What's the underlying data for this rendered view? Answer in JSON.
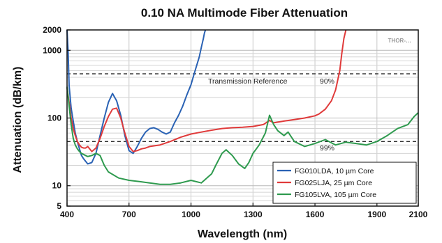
{
  "chart_data": {
    "type": "line",
    "title": "0.10 NA Multimode Fiber Attenuation",
    "xlabel": "Wavelength (nm)",
    "ylabel": "Attenuation (dB/km)",
    "xlim": [
      400,
      2100
    ],
    "ylim": [
      5,
      2000
    ],
    "yscale": "log",
    "x_ticks": [
      400,
      700,
      1000,
      1300,
      1600,
      1900,
      2100
    ],
    "y_ticks": [
      5,
      10,
      100,
      1000,
      2000
    ],
    "grid": true,
    "legend_position": "bottom-right",
    "watermark": "THOR-…",
    "reference_lines": [
      {
        "value": 450,
        "label": "Transmission Reference",
        "percent": "90%"
      },
      {
        "value": 45,
        "label": "",
        "percent": "99%"
      }
    ],
    "series": [
      {
        "name": "FG010LDA, 10 µm Core",
        "color": "#2a62b4",
        "x": [
          400,
          405,
          410,
          420,
          430,
          440,
          450,
          460,
          470,
          480,
          500,
          520,
          540,
          560,
          580,
          600,
          620,
          640,
          660,
          680,
          700,
          720,
          740,
          760,
          780,
          800,
          820,
          840,
          860,
          880,
          900,
          920,
          940,
          960,
          980,
          1000,
          1020,
          1040,
          1050,
          1060,
          1065,
          1070
        ],
        "y": [
          2000,
          1000,
          300,
          140,
          90,
          60,
          45,
          35,
          28,
          25,
          21,
          22,
          30,
          55,
          100,
          170,
          230,
          180,
          110,
          55,
          33,
          30,
          38,
          50,
          62,
          70,
          72,
          68,
          62,
          58,
          62,
          85,
          110,
          150,
          220,
          310,
          500,
          800,
          1100,
          1500,
          1800,
          2000
        ]
      },
      {
        "name": "FG025LJA, 25 µm Core",
        "color": "#e03a3a",
        "x": [
          400,
          410,
          420,
          430,
          440,
          450,
          460,
          470,
          480,
          490,
          500,
          520,
          540,
          560,
          580,
          600,
          620,
          640,
          660,
          680,
          700,
          720,
          740,
          760,
          780,
          800,
          850,
          900,
          950,
          1000,
          1050,
          1100,
          1150,
          1200,
          1250,
          1300,
          1350,
          1380,
          1400,
          1450,
          1500,
          1550,
          1600,
          1620,
          1650,
          1680,
          1700,
          1720,
          1730,
          1740,
          1750
        ],
        "y": [
          280,
          170,
          100,
          70,
          55,
          45,
          40,
          37,
          36,
          36,
          38,
          32,
          36,
          50,
          75,
          105,
          135,
          140,
          100,
          60,
          38,
          32,
          33,
          35,
          36,
          38,
          40,
          45,
          52,
          58,
          62,
          66,
          70,
          72,
          73,
          75,
          80,
          92,
          85,
          90,
          95,
          100,
          108,
          115,
          135,
          180,
          260,
          500,
          900,
          1500,
          2000
        ]
      },
      {
        "name": "FG105LVA, 105 µm Core",
        "color": "#2e9a4e",
        "x": [
          400,
          410,
          420,
          430,
          440,
          450,
          460,
          470,
          480,
          490,
          500,
          520,
          540,
          560,
          580,
          600,
          650,
          700,
          750,
          800,
          850,
          900,
          950,
          1000,
          1050,
          1100,
          1120,
          1150,
          1170,
          1200,
          1230,
          1260,
          1280,
          1300,
          1330,
          1360,
          1380,
          1400,
          1420,
          1450,
          1470,
          1500,
          1550,
          1600,
          1650,
          1700,
          1750,
          1800,
          1850,
          1900,
          1950,
          2000,
          2050,
          2080,
          2100
        ],
        "y": [
          290,
          150,
          80,
          50,
          40,
          35,
          32,
          30,
          29,
          28,
          27,
          28,
          30,
          28,
          20,
          16,
          13,
          12,
          11.5,
          11,
          10.5,
          10.5,
          11,
          12,
          11,
          15,
          20,
          30,
          34,
          28,
          21,
          18,
          22,
          30,
          40,
          60,
          110,
          80,
          65,
          55,
          62,
          45,
          38,
          42,
          48,
          40,
          44,
          42,
          40,
          45,
          55,
          70,
          80,
          105,
          120
        ]
      }
    ]
  }
}
